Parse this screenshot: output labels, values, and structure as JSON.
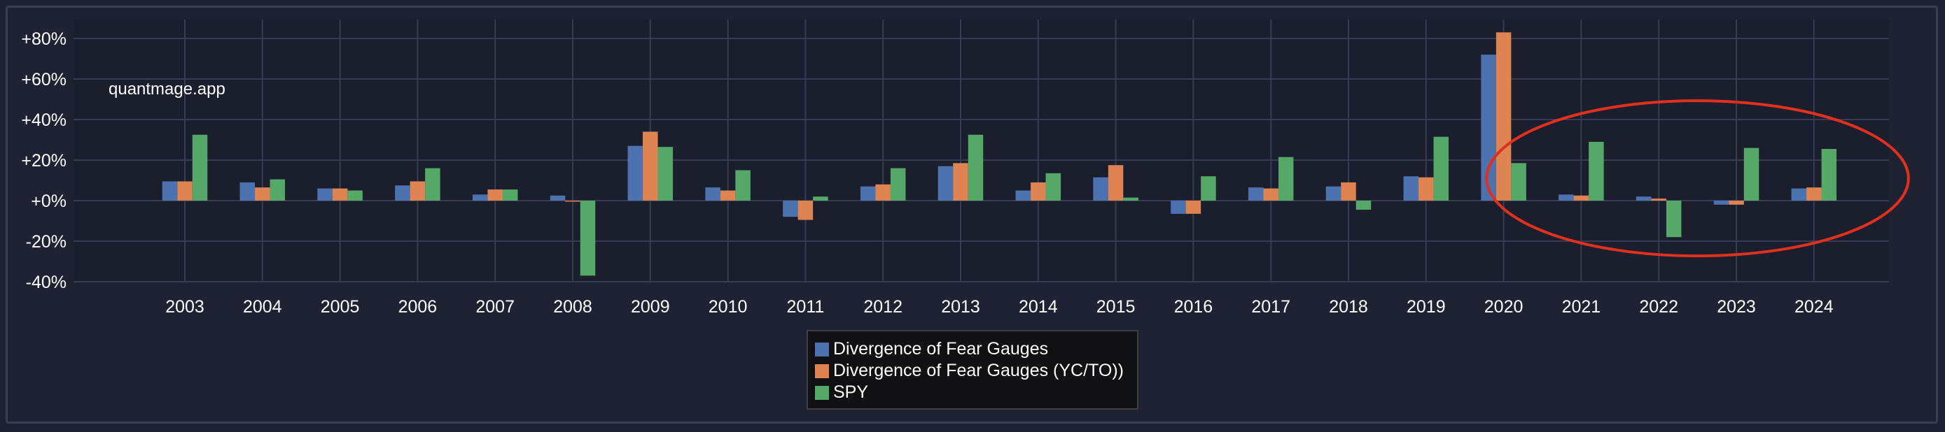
{
  "watermark": "quantmage.app",
  "colors": {
    "background": "#1e2233",
    "plot_background": "#1b1e2c",
    "grid": "#373c52",
    "annotation": "#e0301e"
  },
  "chart_data": {
    "type": "bar",
    "title": "",
    "xlabel": "",
    "ylabel": "",
    "categories": [
      "2003",
      "2004",
      "2005",
      "2006",
      "2007",
      "2008",
      "2009",
      "2010",
      "2011",
      "2012",
      "2013",
      "2014",
      "2015",
      "2016",
      "2017",
      "2018",
      "2019",
      "2020",
      "2021",
      "2022",
      "2023",
      "2024"
    ],
    "ylim": [
      -40,
      80
    ],
    "yticks": [
      -40,
      -20,
      0,
      20,
      40,
      60,
      80
    ],
    "ytick_labels": [
      "-40%",
      "-20%",
      "+0%",
      "+20%",
      "+40%",
      "+60%",
      "+80%"
    ],
    "grid": true,
    "legend_position": "bottom-center",
    "series": [
      {
        "name": "Divergence of Fear Gauges",
        "color": "#4c72b0",
        "values": [
          9.5,
          9,
          6,
          7.5,
          3,
          2.5,
          27,
          6.5,
          -8,
          7,
          17,
          5,
          11.5,
          -6.5,
          6.5,
          7,
          12,
          72,
          3,
          2,
          -2,
          6
        ]
      },
      {
        "name": "Divergence of Fear Gauges (YC/TO))",
        "color": "#dd8452",
        "values": [
          9.5,
          6.5,
          6,
          9.5,
          5.5,
          -0.5,
          34,
          5,
          -9.5,
          8,
          18.5,
          9,
          17.5,
          -6.5,
          6,
          9,
          11.5,
          83,
          2.5,
          1,
          -2,
          6.5
        ]
      },
      {
        "name": "SPY",
        "color": "#55a868",
        "values": [
          32.5,
          10.5,
          5,
          16,
          5.5,
          -37,
          26.5,
          15,
          2,
          16,
          32.5,
          13.5,
          1.5,
          12,
          21.5,
          -4.5,
          31.5,
          18.5,
          29,
          -18,
          26,
          25.5
        ]
      }
    ],
    "annotations": [
      {
        "type": "ellipse",
        "description": "red circle highlighting 2021-2024",
        "category_range": [
          "2021",
          "2024"
        ],
        "color": "#e0301e"
      }
    ]
  }
}
